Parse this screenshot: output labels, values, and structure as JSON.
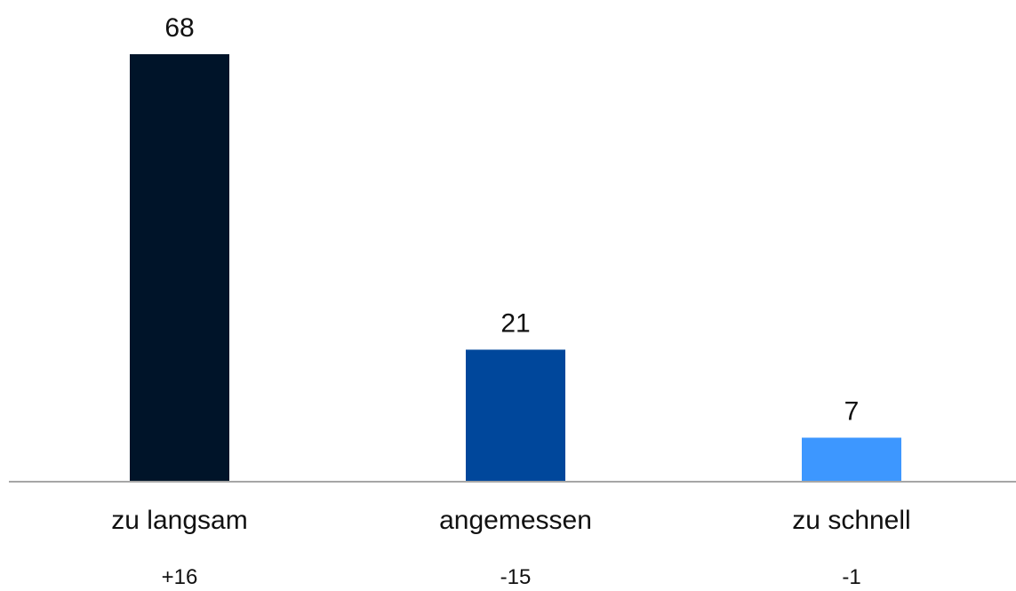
{
  "chart_data": {
    "type": "bar",
    "title": "",
    "xlabel": "",
    "ylabel": "",
    "categories": [
      "zu langsam",
      "angemessen",
      "zu schnell"
    ],
    "values": [
      68,
      21,
      7
    ],
    "value_labels": [
      "68",
      "21",
      "7"
    ],
    "changes": [
      "+16",
      "-15",
      "-1"
    ],
    "colors": [
      "#001429",
      "#00479b",
      "#3d97ff"
    ],
    "ylim": [
      0,
      68
    ],
    "grid": false,
    "legend": false
  }
}
